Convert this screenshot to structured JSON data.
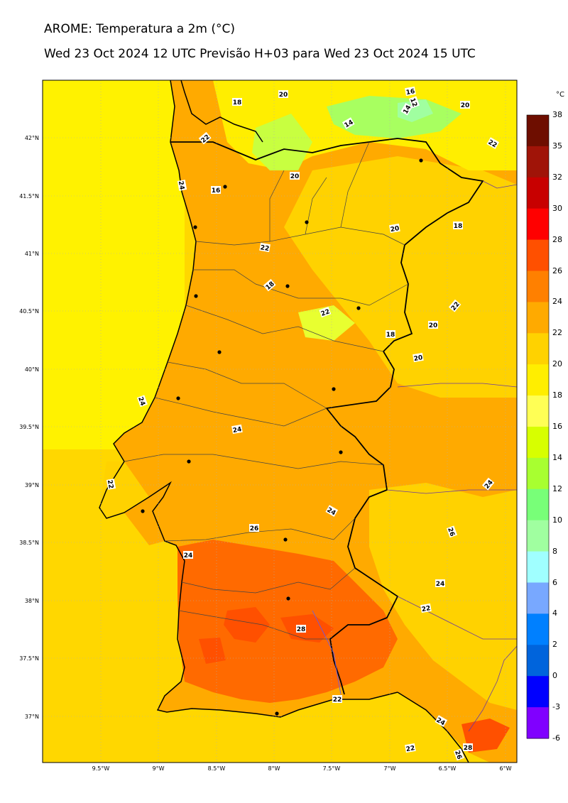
{
  "header": {
    "title": "AROME: Temperatura a 2m (°C)",
    "subtitle": "Wed 23 Oct 2024 12 UTC Previsão H+03 para Wed 23 Oct 2024 15 UTC"
  },
  "map": {
    "lat_ticks": [
      "42°N",
      "41.5°N",
      "41°N",
      "40.5°N",
      "40°N",
      "39.5°N",
      "39°N",
      "38.5°N",
      "38°N",
      "37.5°N",
      "37°N"
    ],
    "lon_ticks": [
      "9.5°W",
      "9°W",
      "8.5°W",
      "8°W",
      "7.5°W",
      "7°W",
      "6.5°W",
      "6°W"
    ],
    "contour_labels": [
      "20",
      "18",
      "16",
      "12",
      "14",
      "14",
      "20",
      "22",
      "22",
      "24",
      "16",
      "20",
      "20",
      "18",
      "22",
      "18",
      "22",
      "18",
      "20",
      "22",
      "20",
      "24",
      "22",
      "24",
      "24",
      "24",
      "26",
      "26",
      "24",
      "24",
      "22",
      "28",
      "22",
      "24",
      "22",
      "28",
      "26"
    ]
  },
  "colorbar": {
    "unit": "°C",
    "levels": [
      "38",
      "35",
      "32",
      "30",
      "28",
      "26",
      "24",
      "22",
      "20",
      "18",
      "16",
      "14",
      "12",
      "10",
      "8",
      "6",
      "4",
      "2",
      "0",
      "-3",
      "-6"
    ],
    "colors": [
      "#6e0e00",
      "#a01408",
      "#c80000",
      "#ff0000",
      "#ff5000",
      "#ff8000",
      "#ffaa00",
      "#ffd200",
      "#ffee00",
      "#ffff55",
      "#d7ff00",
      "#a8ff30",
      "#78ff78",
      "#a0ffa0",
      "#a0ffff",
      "#78a8ff",
      "#0080ff",
      "#0064dc",
      "#0000ff",
      "#8000ff",
      "#e000ff"
    ]
  }
}
